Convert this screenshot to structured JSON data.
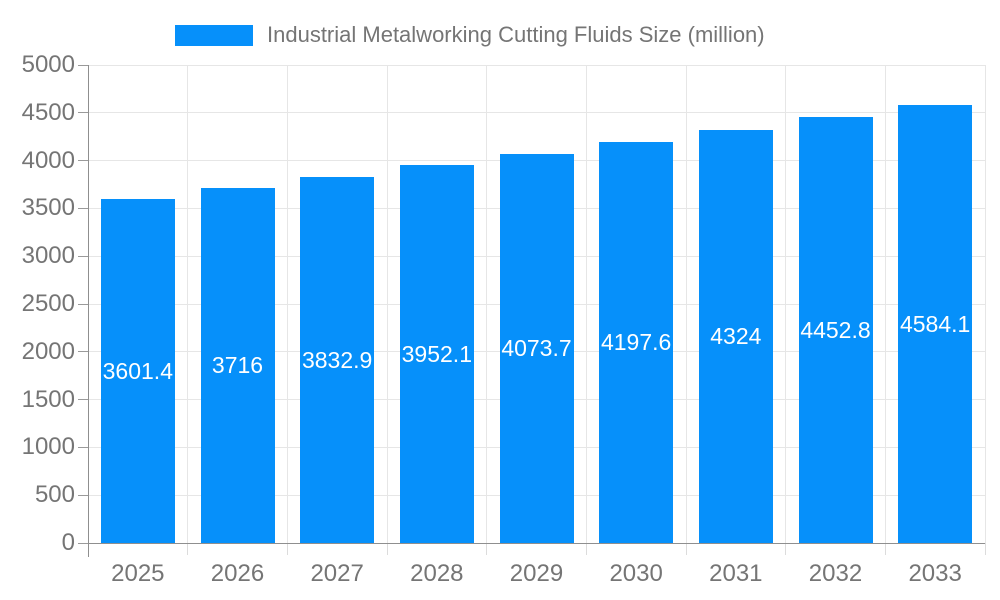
{
  "legend": {
    "label": "Industrial Metalworking Cutting Fluids Size (million)",
    "swatch_color": "#0690fa"
  },
  "chart_data": {
    "type": "bar",
    "title": "Industrial Metalworking Cutting Fluids Size (million)",
    "categories": [
      "2025",
      "2026",
      "2027",
      "2028",
      "2029",
      "2030",
      "2031",
      "2032",
      "2033"
    ],
    "values": [
      3601.4,
      3716,
      3832.9,
      3952.1,
      4073.7,
      4197.6,
      4324,
      4452.8,
      4584.1
    ],
    "xlabel": "",
    "ylabel": "",
    "ylim": [
      0,
      5000
    ],
    "ytick_step": 500,
    "grid": true,
    "legend_position": "top-center",
    "bar_color": "#0690fa",
    "bar_label_color": "#ffffff",
    "axis_color": "#8f8f8f",
    "grid_color": "#e6e6e6",
    "text_color": "#757575"
  }
}
